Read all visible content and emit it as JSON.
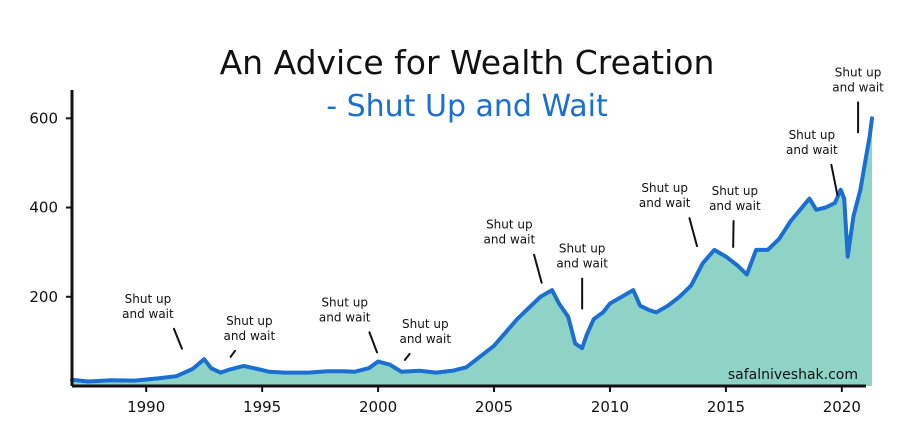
{
  "chart_data": {
    "type": "area",
    "title": "An Advice for Wealth Creation",
    "subtitle": "- Shut Up and Wait",
    "xlabel": "",
    "ylabel": "",
    "xlim": [
      1986.8,
      2021.3
    ],
    "ylim": [
      0,
      650
    ],
    "grid": false,
    "legend": "none",
    "x_ticks": [
      {
        "value": 1990,
        "label": "1990"
      },
      {
        "value": 1995,
        "label": "1995"
      },
      {
        "value": 2000,
        "label": "2000"
      },
      {
        "value": 2005,
        "label": "2005"
      },
      {
        "value": 2010,
        "label": "2010"
      },
      {
        "value": 2015,
        "label": "2015"
      },
      {
        "value": 2020,
        "label": "2020"
      }
    ],
    "y_ticks": [
      {
        "value": 200,
        "label": "200"
      },
      {
        "value": 400,
        "label": "400"
      },
      {
        "value": 600,
        "label": "600"
      }
    ],
    "series": [
      {
        "x": [
          1986.8,
          1987.5,
          1988.5,
          1989.5,
          1990.5,
          1991.3,
          1992.0,
          1992.5,
          1992.8,
          1993.2,
          1993.6,
          1994.2,
          1994.8,
          1995.3,
          1996.0,
          1997.0,
          1997.8,
          1998.5,
          1999.0,
          1999.6,
          2000.0,
          2000.5,
          2001.0,
          2001.8,
          2002.5,
          2003.2,
          2003.8,
          2004.5,
          2005.0,
          2005.5,
          2006.0,
          2006.5,
          2007.0,
          2007.5,
          2007.8,
          2008.2,
          2008.5,
          2008.8,
          2009.0,
          2009.3,
          2009.7,
          2010.0,
          2010.5,
          2011.0,
          2011.3,
          2011.7,
          2012.0,
          2012.5,
          2013.0,
          2013.5,
          2014.0,
          2014.5,
          2015.0,
          2015.5,
          2015.9,
          2016.3,
          2016.8,
          2017.3,
          2017.8,
          2018.2,
          2018.6,
          2018.9,
          2019.3,
          2019.7,
          2019.95,
          2020.1,
          2020.25,
          2020.5,
          2020.8,
          2021.0,
          2021.2,
          2021.3
        ],
        "values": [
          14,
          10,
          13,
          12,
          17,
          22,
          38,
          60,
          40,
          30,
          37,
          45,
          38,
          32,
          30,
          30,
          33,
          33,
          32,
          40,
          55,
          48,
          32,
          34,
          30,
          34,
          42,
          70,
          90,
          120,
          150,
          175,
          200,
          215,
          185,
          155,
          95,
          85,
          115,
          150,
          165,
          185,
          200,
          215,
          180,
          170,
          165,
          180,
          200,
          225,
          275,
          305,
          290,
          270,
          250,
          305,
          305,
          330,
          370,
          395,
          420,
          395,
          400,
          410,
          440,
          420,
          290,
          380,
          440,
          500,
          560,
          600
        ]
      }
    ],
    "annotations": [
      {
        "x": 1991.8,
        "y": 70,
        "line1": "Shut up",
        "line2": "and wait"
      },
      {
        "x": 1993.5,
        "y": 52,
        "line1": "Shut up",
        "line2": "and wait"
      },
      {
        "x": 2000.2,
        "y": 62,
        "line1": "Shut up",
        "line2": "and wait"
      },
      {
        "x": 2001.0,
        "y": 45,
        "line1": "Shut up",
        "line2": "and wait"
      },
      {
        "x": 2007.3,
        "y": 218,
        "line1": "Shut up",
        "line2": "and wait"
      },
      {
        "x": 2008.8,
        "y": 160,
        "line1": "Shut up",
        "line2": "and wait"
      },
      {
        "x": 2014.0,
        "y": 300,
        "line1": "Shut up",
        "line2": "and wait"
      },
      {
        "x": 2015.3,
        "y": 298,
        "line1": "Shut up",
        "line2": "and wait"
      },
      {
        "x": 2020.0,
        "y": 415,
        "line1": "Shut up",
        "line2": "and wait"
      },
      {
        "x": 2020.7,
        "y": 555,
        "line1": "Shut up",
        "line2": "and wait"
      }
    ],
    "watermark": "safalniveshak.com",
    "colors": {
      "line": "#1a6fd1",
      "fill": "#8fd3c6",
      "subtitle": "#1a6fd1",
      "text": "#111111"
    }
  }
}
